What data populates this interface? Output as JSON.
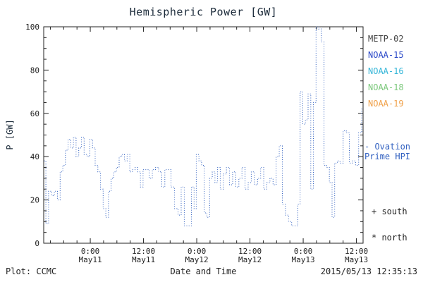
{
  "chart_data": {
    "type": "line",
    "style": "dotted-step",
    "title": "Hemispheric Power [GW]",
    "xlabel": "Date and Time",
    "ylabel": "P [GW]",
    "ylim": [
      0,
      100
    ],
    "y_ticks": [
      0,
      20,
      40,
      60,
      80,
      100
    ],
    "x_range_hours": [
      -10.5,
      61.5
    ],
    "x_ticks": [
      {
        "hour": 0,
        "time": "0:00",
        "date": "May11"
      },
      {
        "hour": 12,
        "time": "12:00",
        "date": "May11"
      },
      {
        "hour": 24,
        "time": "0:00",
        "date": "May12"
      },
      {
        "hour": 36,
        "time": "12:00",
        "date": "May12"
      },
      {
        "hour": 48,
        "time": "0:00",
        "date": "May13"
      },
      {
        "hour": 60,
        "time": "12:00",
        "date": "May13"
      }
    ],
    "grid": false,
    "series": [
      {
        "name": "Ovation Prime HPI",
        "color": "#3160c0",
        "points": [
          [
            -10.4,
            38
          ],
          [
            -10.0,
            9
          ],
          [
            -9.4,
            24
          ],
          [
            -8.7,
            22
          ],
          [
            -8.1,
            24
          ],
          [
            -7.4,
            20
          ],
          [
            -6.8,
            33
          ],
          [
            -6.2,
            36
          ],
          [
            -5.6,
            43
          ],
          [
            -5.0,
            48
          ],
          [
            -4.4,
            44
          ],
          [
            -3.8,
            49
          ],
          [
            -3.2,
            40
          ],
          [
            -2.6,
            44
          ],
          [
            -2.0,
            49
          ],
          [
            -1.4,
            41
          ],
          [
            -0.7,
            40
          ],
          [
            -0.1,
            48
          ],
          [
            0.5,
            44
          ],
          [
            1.1,
            36
          ],
          [
            1.7,
            33
          ],
          [
            2.3,
            25
          ],
          [
            2.9,
            16
          ],
          [
            3.5,
            12
          ],
          [
            4.1,
            24
          ],
          [
            4.7,
            30
          ],
          [
            5.3,
            33
          ],
          [
            5.9,
            35
          ],
          [
            6.5,
            40
          ],
          [
            7.1,
            41
          ],
          [
            7.7,
            38
          ],
          [
            8.3,
            41
          ],
          [
            8.9,
            33
          ],
          [
            9.5,
            34
          ],
          [
            10.1,
            35
          ],
          [
            10.7,
            33
          ],
          [
            11.3,
            26
          ],
          [
            11.9,
            34
          ],
          [
            12.6,
            34
          ],
          [
            13.3,
            30
          ],
          [
            14.0,
            34
          ],
          [
            14.7,
            35
          ],
          [
            15.4,
            33
          ],
          [
            16.1,
            26
          ],
          [
            16.8,
            34
          ],
          [
            17.5,
            34
          ],
          [
            18.2,
            26
          ],
          [
            19.0,
            16
          ],
          [
            19.8,
            13
          ],
          [
            20.5,
            26
          ],
          [
            21.2,
            8
          ],
          [
            22.0,
            8
          ],
          [
            22.8,
            26
          ],
          [
            23.4,
            16
          ],
          [
            23.9,
            41
          ],
          [
            24.5,
            38
          ],
          [
            25.1,
            36
          ],
          [
            25.7,
            14
          ],
          [
            26.3,
            12
          ],
          [
            26.9,
            30
          ],
          [
            27.5,
            33
          ],
          [
            28.1,
            28
          ],
          [
            28.7,
            35
          ],
          [
            29.3,
            25
          ],
          [
            30.0,
            32
          ],
          [
            30.7,
            35
          ],
          [
            31.4,
            27
          ],
          [
            32.1,
            33
          ],
          [
            32.8,
            26
          ],
          [
            33.5,
            30
          ],
          [
            34.2,
            35
          ],
          [
            34.9,
            25
          ],
          [
            35.6,
            28
          ],
          [
            36.3,
            33
          ],
          [
            37.0,
            27
          ],
          [
            37.7,
            30
          ],
          [
            38.4,
            35
          ],
          [
            39.1,
            25
          ],
          [
            39.8,
            28
          ],
          [
            40.5,
            30
          ],
          [
            41.2,
            27
          ],
          [
            41.9,
            40
          ],
          [
            42.6,
            45
          ],
          [
            43.3,
            18
          ],
          [
            44.0,
            13
          ],
          [
            44.7,
            10
          ],
          [
            45.4,
            8
          ],
          [
            46.1,
            8
          ],
          [
            46.8,
            18
          ],
          [
            47.3,
            70
          ],
          [
            47.9,
            55
          ],
          [
            48.5,
            57
          ],
          [
            49.1,
            69
          ],
          [
            49.7,
            25
          ],
          [
            50.3,
            65
          ],
          [
            50.9,
            100
          ],
          [
            51.5,
            99
          ],
          [
            52.1,
            93
          ],
          [
            52.7,
            36
          ],
          [
            53.3,
            35
          ],
          [
            53.9,
            28
          ],
          [
            54.5,
            12
          ],
          [
            55.1,
            37
          ],
          [
            55.7,
            38
          ],
          [
            56.3,
            37
          ],
          [
            57.0,
            52
          ],
          [
            57.7,
            51
          ],
          [
            58.4,
            37
          ],
          [
            59.1,
            38
          ],
          [
            59.8,
            36
          ],
          [
            60.5,
            51
          ],
          [
            61.2,
            62
          ]
        ]
      }
    ]
  },
  "legend": {
    "satellites": [
      {
        "label": "METP-02",
        "color": "#444444"
      },
      {
        "label": "NOAA-15",
        "color": "#2b49c8"
      },
      {
        "label": "NOAA-16",
        "color": "#35b6d8"
      },
      {
        "label": "NOAA-18",
        "color": "#7bc87b"
      },
      {
        "label": "NOAA-19",
        "color": "#f0a048"
      }
    ],
    "model_label_line1": "- Ovation",
    "model_label_line2": "Prime HPI",
    "model_color": "#3160c0",
    "south_marker": "+ south",
    "north_marker": "* north"
  },
  "footer": {
    "left": "Plot: CCMC",
    "center": "Date and Time",
    "right": "2015/05/13 12:35:13"
  }
}
